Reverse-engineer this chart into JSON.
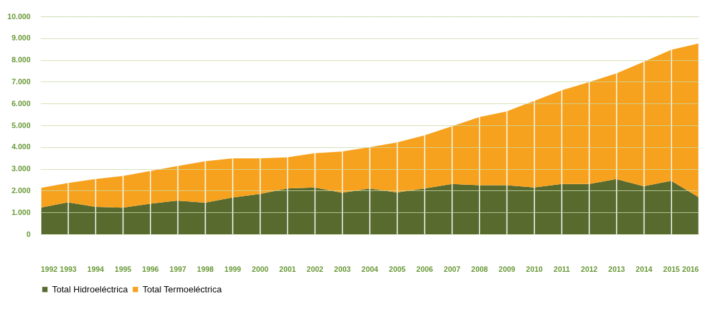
{
  "chart_data": {
    "type": "area",
    "stacked": true,
    "categories": [
      "1992",
      "1993",
      "1994",
      "1995",
      "1996",
      "1997",
      "1998",
      "1999",
      "2000",
      "2001",
      "2002",
      "2003",
      "2004",
      "2005",
      "2006",
      "2007",
      "2008",
      "2009",
      "2010",
      "2011",
      "2012",
      "2013",
      "2014",
      "2015",
      "2016"
    ],
    "series": [
      {
        "name": "Total Hidroeléctrica",
        "color": "#596a2f",
        "values": [
          1220,
          1460,
          1260,
          1220,
          1400,
          1540,
          1450,
          1680,
          1850,
          2100,
          2150,
          1900,
          2100,
          1920,
          2100,
          2300,
          2250,
          2250,
          2150,
          2300,
          2300,
          2530,
          2200,
          2450,
          1700
        ]
      },
      {
        "name": "Total Termoeléctrica",
        "color": "#f7a21e",
        "values": [
          900,
          890,
          1270,
          1450,
          1500,
          1590,
          1900,
          1800,
          1630,
          1430,
          1570,
          1900,
          1890,
          2290,
          2440,
          2650,
          3130,
          3390,
          3970,
          4300,
          4680,
          4850,
          5720,
          6020,
          7060
        ]
      }
    ],
    "ylim": [
      0,
      10000
    ],
    "yticks": [
      0,
      {
        "value": 1000,
        "label": "1.000"
      },
      {
        "value": 2000,
        "label": "2.000"
      },
      {
        "value": 3000,
        "label": "3.000"
      },
      {
        "value": 4000,
        "label": "4.000"
      },
      {
        "value": 5000,
        "label": "5.000"
      },
      {
        "value": 6000,
        "label": "6.000"
      },
      {
        "value": 7000,
        "label": "7.000"
      },
      {
        "value": 8000,
        "label": "8.000"
      },
      {
        "value": 9000,
        "label": "9.000"
      },
      {
        "value": 10000,
        "label": "10.000"
      }
    ],
    "grid": true,
    "legend": "bottom"
  }
}
